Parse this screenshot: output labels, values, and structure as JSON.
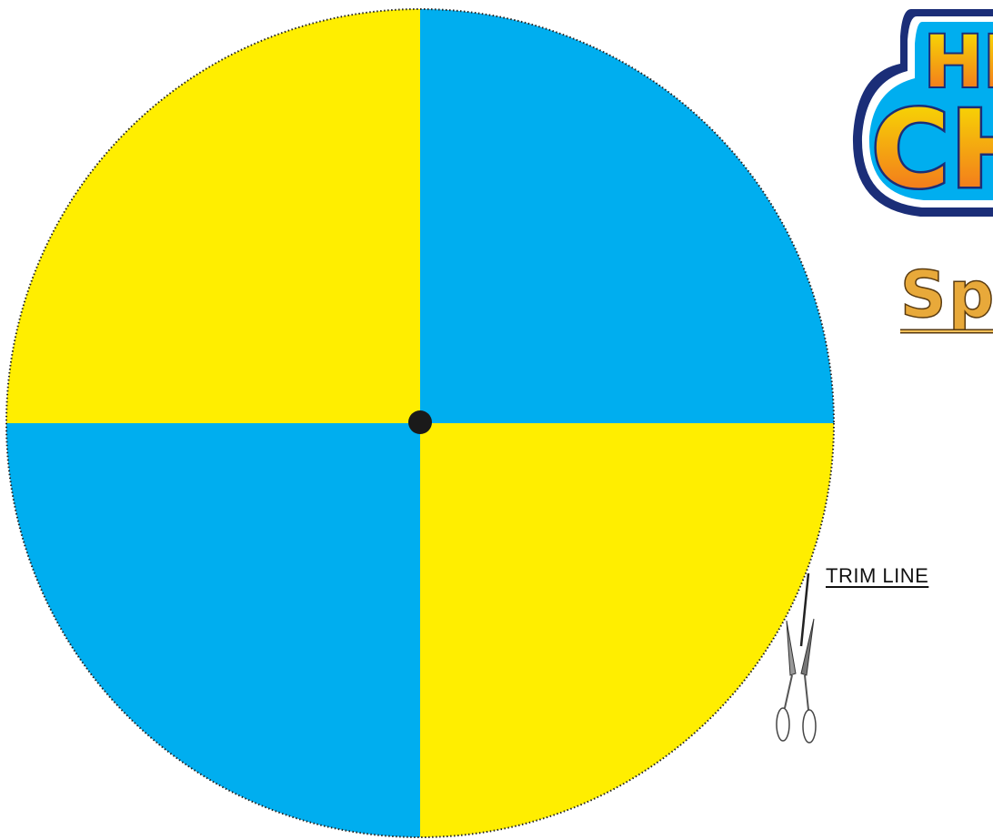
{
  "spinner": {
    "quadrants": [
      {
        "position": "top-left",
        "color": "#FFEE00"
      },
      {
        "position": "top-right",
        "color": "#00AEEF"
      },
      {
        "position": "bottom-left",
        "color": "#00AEEF"
      },
      {
        "position": "bottom-right",
        "color": "#FFEE00"
      }
    ],
    "center_dot_color": "#1a1a1a",
    "trim_line_style": "dotted"
  },
  "logo": {
    "line1": "HE",
    "line2": "CH",
    "fill_colors": [
      "#F7E600",
      "#F26522"
    ],
    "outline_colors": [
      "#1B2E78",
      "#00AEEF"
    ]
  },
  "title": {
    "text": "Spi",
    "color": "#E8A93A"
  },
  "trim": {
    "label": "TRIM LINE",
    "icon": "scissors-icon"
  }
}
